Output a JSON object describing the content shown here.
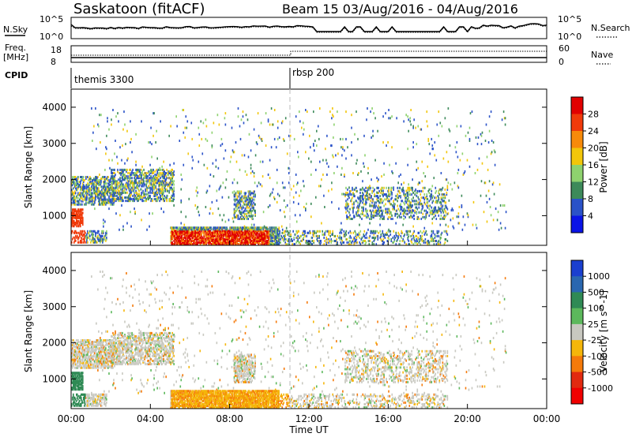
{
  "header": {
    "station": "Saskatoon (fitACF)",
    "beam_dates": "Beam 15 03/Aug/2016 - 04/Aug/2016"
  },
  "top_panels": {
    "nsky_label": "N.Sky",
    "nsky_ticks": [
      "10^5",
      "10^0"
    ],
    "nsky_right_ticks": [
      "10^5",
      "10^0"
    ],
    "nsearch_label": "N.Search",
    "freq_label": "Freq.",
    "freq_unit": "[MHz]",
    "freq_ticks": [
      "18",
      "8"
    ],
    "nave_ticks": [
      "60",
      "0"
    ],
    "nave_label": "Nave",
    "cpid_label": "CPID",
    "cpid_entries": [
      {
        "label": "themis 3300",
        "start_hour": 0
      },
      {
        "label": "rbsp 200",
        "start_hour": 11.0
      }
    ]
  },
  "chart_data": [
    {
      "type": "heatmap",
      "name": "power",
      "ylabel": "Slant Range [km]",
      "ylim": [
        180,
        4500
      ],
      "yticks": [
        "1000",
        "2000",
        "3000",
        "4000"
      ],
      "colorbar": {
        "label": "Power [dB]",
        "ticks": [
          "4",
          "8",
          "12",
          "16",
          "20",
          "24",
          "28"
        ],
        "colors": [
          "#0a14e6",
          "#2a52c8",
          "#3d8a5a",
          "#8ed26e",
          "#f2c60a",
          "#f78a0a",
          "#f03a0a",
          "#e10000"
        ]
      }
    },
    {
      "type": "heatmap",
      "name": "velocity",
      "ylabel": "Slant Range [km]",
      "ylim": [
        180,
        4500
      ],
      "yticks": [
        "1000",
        "2000",
        "3000",
        "4000"
      ],
      "colorbar": {
        "label": "Velocity [m s^-1]",
        "ticks": [
          "1000",
          "500",
          "100",
          "25",
          "-25",
          "-100",
          "-500",
          "-1000"
        ],
        "colors": [
          "#1a3fcf",
          "#2a67b0",
          "#2f8a55",
          "#5cb85c",
          "#c8c8c0",
          "#f5b60a",
          "#f57a0a",
          "#e22a10",
          "#f00000"
        ]
      }
    }
  ],
  "x_axis": {
    "label": "Time UT",
    "ticks": [
      "00:00",
      "04:00",
      "08:00",
      "12:00",
      "16:00",
      "20:00",
      "00:00"
    ],
    "range_hours": [
      0,
      24
    ]
  },
  "colors": {
    "frame": "#000000",
    "cpid_divider": "#bbbbbb"
  }
}
